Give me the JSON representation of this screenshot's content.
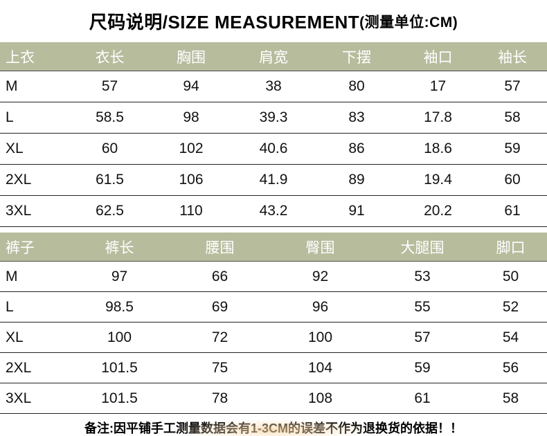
{
  "title": {
    "main": "尺码说明/SIZE MEASUREMENT",
    "unit": "(测量单位:CM)"
  },
  "colors": {
    "header_bg": "#b7bc9d",
    "header_text": "#ffffff",
    "body_text": "#111111",
    "divider": "#222222",
    "glow": "#f9d3a0"
  },
  "tops_table": {
    "headers": [
      "上衣",
      "衣长",
      "胸围",
      "肩宽",
      "下摆",
      "袖口",
      "袖长"
    ],
    "rows": [
      [
        "M",
        "57",
        "94",
        "38",
        "80",
        "17",
        "57"
      ],
      [
        "L",
        "58.5",
        "98",
        "39.3",
        "83",
        "17.8",
        "58"
      ],
      [
        "XL",
        "60",
        "102",
        "40.6",
        "86",
        "18.6",
        "59"
      ],
      [
        "2XL",
        "61.5",
        "106",
        "41.9",
        "89",
        "19.4",
        "60"
      ],
      [
        "3XL",
        "62.5",
        "110",
        "43.2",
        "91",
        "20.2",
        "61"
      ]
    ]
  },
  "pants_table": {
    "headers": [
      "裤子",
      "裤长",
      "腰围",
      "臀围",
      "大腿围",
      "脚口"
    ],
    "rows": [
      [
        "M",
        "97",
        "66",
        "92",
        "53",
        "50"
      ],
      [
        "L",
        "98.5",
        "69",
        "96",
        "55",
        "52"
      ],
      [
        "XL",
        "100",
        "72",
        "100",
        "57",
        "54"
      ],
      [
        "2XL",
        "101.5",
        "75",
        "104",
        "59",
        "56"
      ],
      [
        "3XL",
        "101.5",
        "78",
        "108",
        "61",
        "58"
      ]
    ]
  },
  "note": "备注:因平铺手工测量数据会有1-3CM的误差不作为退换货的依据！！"
}
